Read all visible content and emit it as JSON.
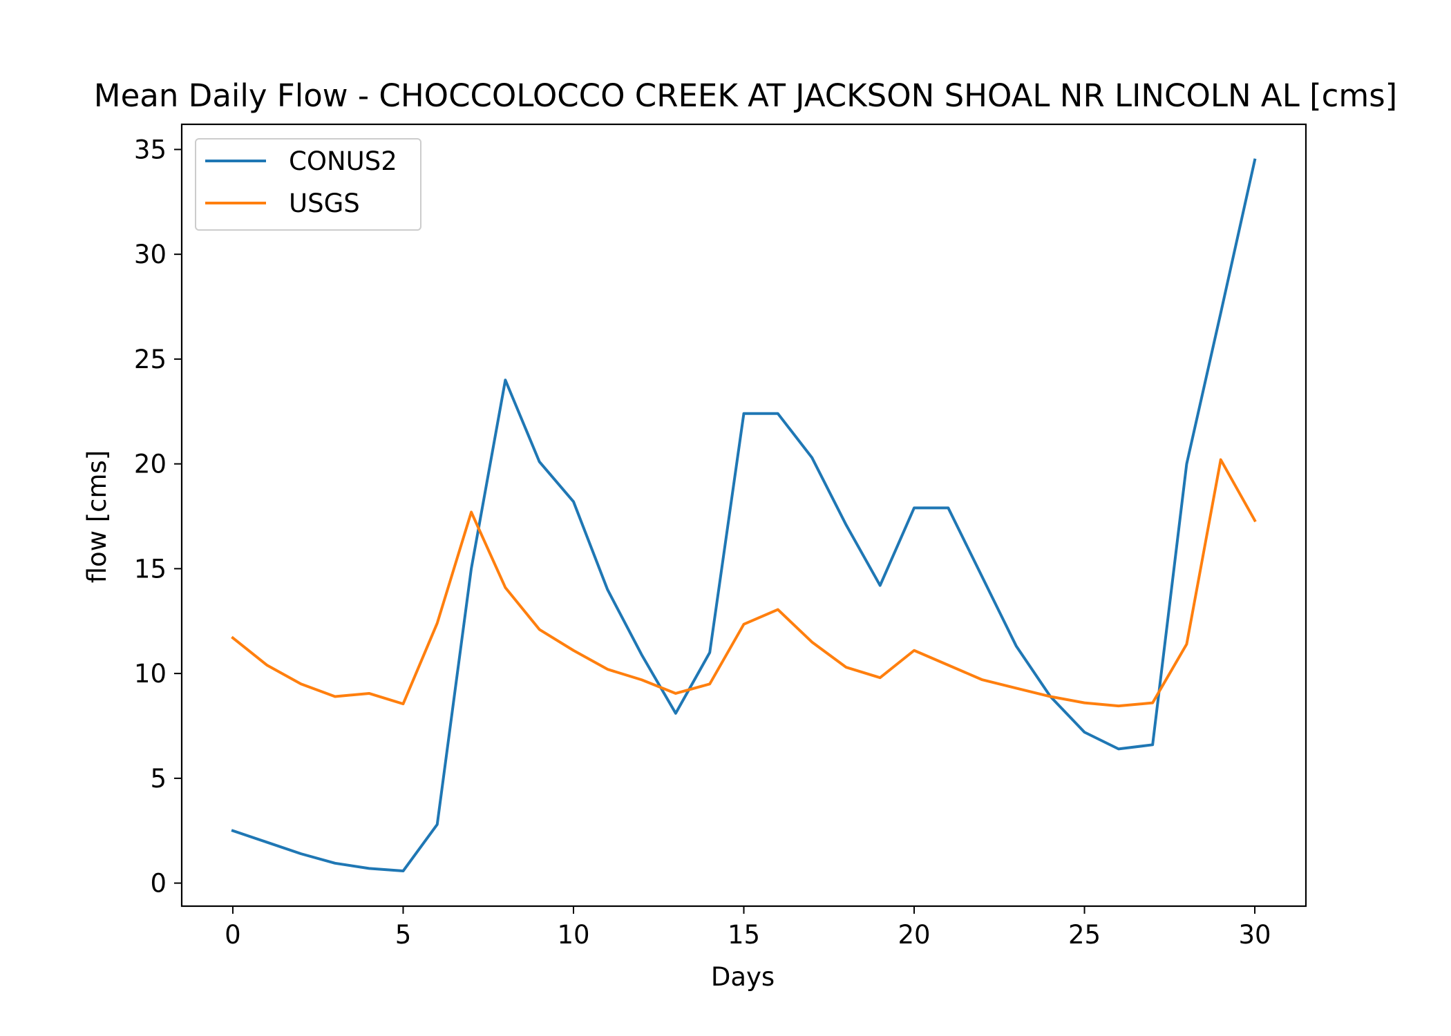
{
  "chart_data": {
    "type": "line",
    "title": "Mean Daily Flow - CHOCCOLOCCO CREEK AT JACKSON SHOAL NR LINCOLN AL [cms]",
    "xlabel": "Days",
    "ylabel": "flow [cms]",
    "xlim": [
      -1.5,
      31.5
    ],
    "ylim": [
      -1.1,
      36.2
    ],
    "x_ticks": [
      0,
      5,
      10,
      15,
      20,
      25,
      30
    ],
    "y_ticks": [
      0,
      5,
      10,
      15,
      20,
      25,
      30,
      35
    ],
    "grid": false,
    "legend_position": "upper-left",
    "x": [
      0,
      1,
      2,
      3,
      4,
      5,
      6,
      7,
      8,
      9,
      10,
      11,
      12,
      13,
      14,
      15,
      16,
      17,
      18,
      19,
      20,
      21,
      22,
      23,
      24,
      25,
      26,
      27,
      28,
      29,
      30
    ],
    "series": [
      {
        "name": "CONUS2",
        "color": "#1f77b4",
        "values": [
          2.5,
          1.95,
          1.4,
          0.95,
          0.7,
          0.58,
          2.8,
          15.0,
          24.0,
          20.1,
          18.2,
          14.0,
          10.9,
          8.1,
          11.0,
          22.4,
          22.4,
          20.3,
          17.1,
          14.2,
          17.9,
          17.9,
          14.6,
          11.3,
          8.9,
          7.2,
          6.4,
          6.6,
          20.0,
          27.2,
          34.5
        ]
      },
      {
        "name": "USGS",
        "color": "#ff7f0e",
        "values": [
          11.7,
          10.4,
          9.5,
          8.9,
          9.05,
          8.55,
          12.4,
          17.7,
          14.1,
          12.1,
          11.1,
          10.2,
          9.7,
          9.05,
          9.5,
          12.35,
          13.05,
          11.5,
          10.3,
          9.8,
          11.1,
          10.4,
          9.7,
          9.3,
          8.9,
          8.6,
          8.45,
          8.6,
          11.4,
          20.2,
          17.3
        ]
      }
    ]
  }
}
